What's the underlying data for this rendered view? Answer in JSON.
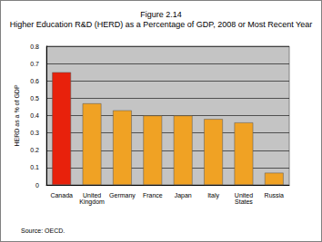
{
  "chart_data": {
    "type": "bar",
    "title": "Figure 2.14",
    "subtitle": "Higher Education R&D (HERD) as a Percentage of GDP, 2008 or Most Recent Year",
    "y_label": "HERD as a % of GDP",
    "categories": [
      "Canada",
      "United Kingdom",
      "Germany",
      "France",
      "Japan",
      "Italy",
      "United States",
      "Russia"
    ],
    "values": [
      0.65,
      0.47,
      0.43,
      0.4,
      0.4,
      0.38,
      0.36,
      0.07
    ],
    "colors": [
      "#e8210b",
      "#f0a224",
      "#f0a224",
      "#f0a224",
      "#f0a224",
      "#f0a224",
      "#f0a224",
      "#f0a224"
    ],
    "ylim": [
      0,
      0.8
    ],
    "yticks": [
      0,
      0.1,
      0.2,
      0.3,
      0.4,
      0.5,
      0.6,
      0.7,
      0.8
    ],
    "grid": true,
    "annotations": [
      "Source: OECD."
    ]
  }
}
